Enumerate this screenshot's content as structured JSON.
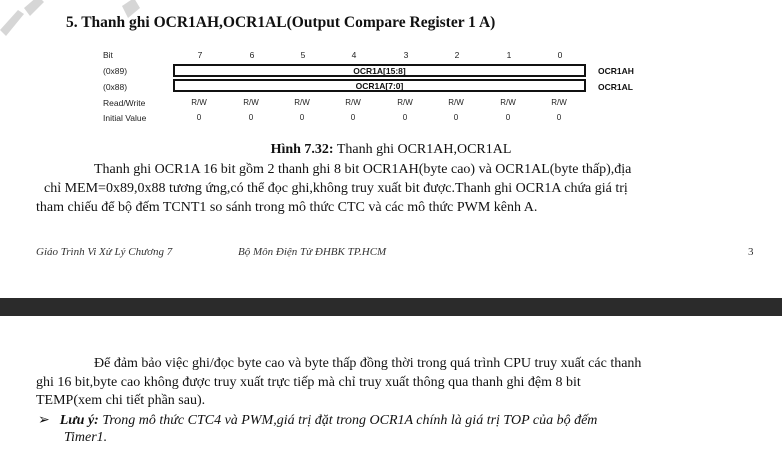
{
  "heading": "5. Thanh ghi OCR1AH,OCR1AL(Output Compare Register 1 A)",
  "register": {
    "bit_label": "Bit",
    "bits": [
      "7",
      "6",
      "5",
      "4",
      "3",
      "2",
      "1",
      "0"
    ],
    "addr_high": "(0x89)",
    "addr_low": "(0x88)",
    "field_high": "OCR1A[15:8]",
    "field_low": "OCR1A[7:0]",
    "name_high": "OCR1AH",
    "name_low": "OCR1AL",
    "rw_label": "Read/Write",
    "rw_values": [
      "R/W",
      "R/W",
      "R/W",
      "R/W",
      "R/W",
      "R/W",
      "R/W",
      "R/W"
    ],
    "init_label": "Initial Value",
    "init_values": [
      "0",
      "0",
      "0",
      "0",
      "0",
      "0",
      "0",
      "0"
    ]
  },
  "caption": {
    "prefix": "Hình 7.32:",
    "text": " Thanh ghi OCR1AH,OCR1AL"
  },
  "paragraph1": [
    "Thanh ghi OCR1A 16 bit gồm 2 thanh ghi 8 bit OCR1AH(byte cao) và OCR1AL(byte thấp),địa",
    "chỉ MEM=0x89,0x88 tương ứng,có thể đọc ghi,không truy xuất bit được.Thanh ghi OCR1A chứa giá trị",
    "tham chiếu để bộ đếm TCNT1 so sánh trong mô thức CTC và các mô thức PWM kênh A."
  ],
  "footer": {
    "left": "Giáo Trình Vi Xử Lý Chương 7",
    "center": "Bộ Môn Điện Tử ĐHBK TP.HCM",
    "page": "3"
  },
  "paragraph2": [
    "Để đảm bảo việc ghi/đọc byte cao và byte thấp đồng thời trong quá trình CPU truy xuất các thanh",
    "ghi 16 bit,byte cao không được truy xuất trực tiếp mà chỉ truy xuất thông qua thanh ghi đệm 8 bit",
    "TEMP(xem chi tiết phần sau)."
  ],
  "note": {
    "bullet": "➢",
    "label": "Lưu ý:",
    "line1": " Trong mô thức CTC4 và PWM,giá trị đặt trong OCR1A chính là giá trị TOP của bộ đếm",
    "line2": "Timer1."
  }
}
